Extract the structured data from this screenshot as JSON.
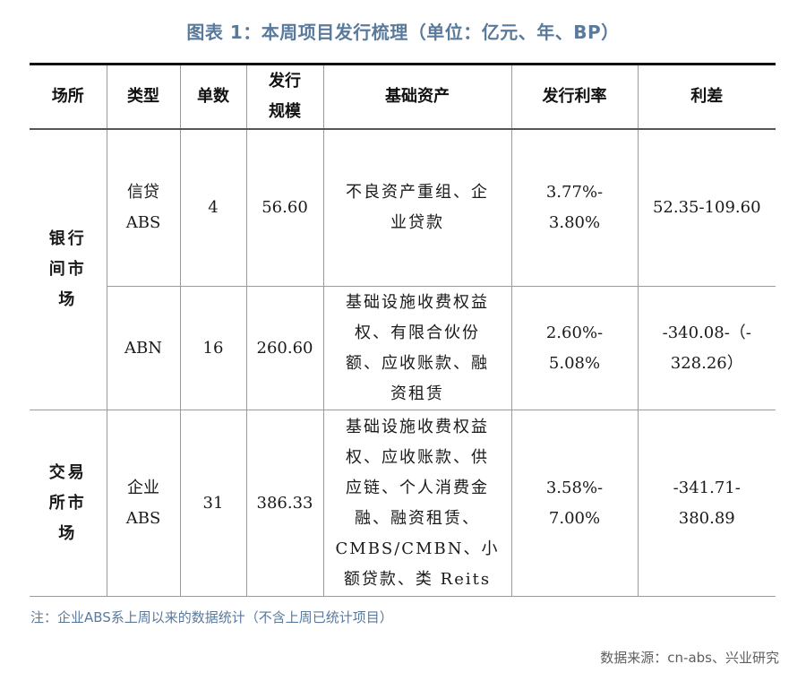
{
  "title": "图表 1：本周项目发行梳理（单位：亿元、年、BP）",
  "table": {
    "headers": [
      "场所",
      "类型",
      "单数",
      "发行\n规模",
      "基础资产",
      "发行利率",
      "利差"
    ],
    "markets": [
      {
        "name_lines": [
          "银行",
          "间市",
          "场"
        ]
      },
      {
        "name_lines": [
          "交易",
          "所市",
          "场"
        ]
      }
    ],
    "rows": [
      {
        "type": "信贷\nABS",
        "count": "4",
        "scale": "56.60",
        "assets": "不良资产重组、企\n业贷款",
        "rate": "3.77%-\n3.80%",
        "spread": "52.35-109.60"
      },
      {
        "type": "ABN",
        "count": "16",
        "scale": "260.60",
        "assets": "基础设施收费权益\n权、有限合伙份\n额、应收账款、融\n资租赁",
        "rate": "2.60%-\n5.08%",
        "spread": "-340.08-（-\n328.26）"
      },
      {
        "type": "企业\nABS",
        "count": "31",
        "scale": "386.33",
        "assets": "基础设施收费权益\n权、应收账款、供\n应链、个人消费金\n融、融资租赁、\nCMBS/CMBN、小\n额贷款、类 Reits",
        "rate": "3.58%-\n7.00%",
        "spread": "-341.71-\n380.89"
      }
    ]
  },
  "note": "注：企业ABS系上周以来的数据统计（不含上周已统计项目）",
  "source": "数据来源：cn-abs、兴业研究"
}
